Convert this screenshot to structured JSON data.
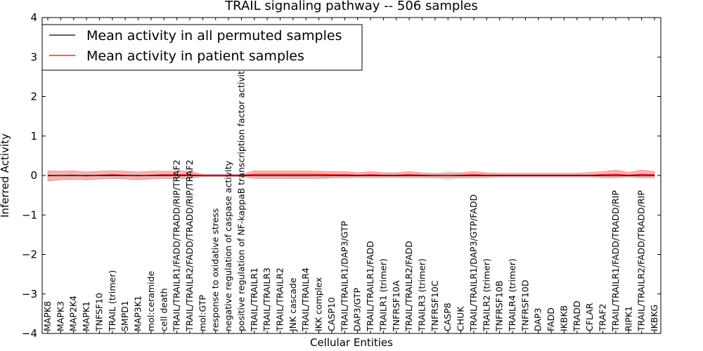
{
  "chart_data": {
    "type": "line",
    "title": "TRAIL signaling pathway -- 506 samples",
    "xlabel": "Cellular Entities",
    "ylabel": "Inferred Activity",
    "ylim": [
      -4,
      4
    ],
    "yticks": [
      "−4",
      "−3",
      "−2",
      "−1",
      "0",
      "1",
      "2",
      "3",
      "4"
    ],
    "grid": false,
    "legend_position": "top-left",
    "categories": [
      "MAPK8",
      "MAPK3",
      "MAP2K4",
      "MAPK1",
      "TNFSF10",
      "TRAIL (trimer)",
      "SMPD1",
      "MAP3K1",
      "mol:ceramide",
      "cell death",
      "TRAIL/TRAILR1/FADD/TRADD/RIP/TRAF2",
      "TRAIL/TRAILR2/FADD/TRADD/RIP/TRAF2",
      "mol:GTP",
      "response to oxidative stress",
      "negative regulation of caspase activity",
      "positive regulation of NF-kappaB transcription factor activity",
      "TRAIL/TRAILR1",
      "TRAIL/TRAILR3",
      "TRAIL/TRAILR2",
      "JNK cascade",
      "TRAIL/TRAILR4",
      "IKK complex",
      "CASP10",
      "TRAIL/TRAILR1/DAP3/GTP",
      "DAP3/GTP",
      "TRAIL/TRAILR1/FADD",
      "TRAILR1 (trimer)",
      "TNFRSF10A",
      "TRAIL/TRAILR2/FADD",
      "TRAILR3 (trimer)",
      "TNFRSF10C",
      "CASP8",
      "CHUK",
      "TRAIL/TRAILR1/DAP3/GTP/FADD",
      "TRAILR2 (trimer)",
      "TNFRSF10B",
      "TRAILR4 (trimer)",
      "TNFRSF10D",
      "DAP3",
      "FADD",
      "IKBKB",
      "TRADD",
      "CFLAR",
      "TRAF2",
      "TRAIL/TRAILR1/FADD/TRADD/RIP",
      "RIPK1",
      "TRAIL/TRAILR2/FADD/TRADD/RIP",
      "IKBKG"
    ],
    "series": [
      {
        "name": "Mean activity in all permuted samples",
        "color": "#000000",
        "values": [
          0,
          0,
          0,
          0,
          0,
          0,
          0,
          0,
          0,
          0,
          0,
          0,
          0,
          0,
          0,
          0,
          0,
          0,
          0,
          0,
          0,
          0,
          0,
          0,
          0,
          0,
          0,
          0,
          0,
          0,
          0,
          0,
          0,
          0,
          0,
          0,
          0,
          0,
          0,
          0,
          0,
          0,
          0,
          0,
          0,
          0,
          0,
          0
        ],
        "band_upper": [
          0.03,
          0.03,
          0.04,
          0.04,
          0.04,
          0.04,
          0.04,
          0.04,
          0.03,
          0.03,
          0.03,
          0.03,
          0.02,
          0.02,
          0.02,
          0.02,
          0.05,
          0.05,
          0.05,
          0.05,
          0.05,
          0.06,
          0.06,
          0.06,
          0.05,
          0.05,
          0.05,
          0.05,
          0.05,
          0.05,
          0.06,
          0.12,
          0.08,
          0.06,
          0.05,
          0.05,
          0.04,
          0.04,
          0.04,
          0.04,
          0.04,
          0.04,
          0.04,
          0.04,
          0.06,
          0.04,
          0.06,
          0.04
        ],
        "band_lower": [
          -0.03,
          -0.03,
          -0.04,
          -0.04,
          -0.04,
          -0.04,
          -0.04,
          -0.04,
          -0.03,
          -0.03,
          -0.03,
          -0.03,
          -0.02,
          -0.02,
          -0.02,
          -0.02,
          -0.05,
          -0.06,
          -0.07,
          -0.08,
          -0.08,
          -0.1,
          -0.08,
          -0.06,
          -0.05,
          -0.05,
          -0.05,
          -0.05,
          -0.05,
          -0.06,
          -0.08,
          -0.12,
          -0.08,
          -0.06,
          -0.05,
          -0.05,
          -0.04,
          -0.04,
          -0.04,
          -0.04,
          -0.04,
          -0.04,
          -0.04,
          -0.04,
          -0.06,
          -0.04,
          -0.06,
          -0.04
        ]
      },
      {
        "name": "Mean activity in patient samples",
        "color": "#ff0000",
        "band_color": "#f4a4a4",
        "values": [
          -0.01,
          0.0,
          0.01,
          -0.01,
          0.01,
          0.02,
          0.01,
          -0.01,
          0.01,
          0.02,
          0.02,
          0.02,
          0.0,
          0.0,
          0.0,
          0.0,
          0.03,
          0.03,
          0.03,
          0.03,
          0.03,
          0.03,
          0.02,
          0.02,
          0.01,
          0.02,
          0.01,
          0.01,
          0.02,
          0.01,
          0.0,
          0.0,
          0.01,
          0.02,
          0.01,
          0.01,
          0.01,
          0.01,
          0.01,
          0.01,
          0.01,
          0.01,
          0.01,
          0.02,
          0.03,
          0.01,
          0.03,
          0.02
        ],
        "band_upper": [
          0.12,
          0.11,
          0.12,
          0.09,
          0.11,
          0.12,
          0.11,
          0.09,
          0.11,
          0.11,
          0.11,
          0.11,
          0.03,
          0.03,
          0.03,
          0.03,
          0.12,
          0.12,
          0.12,
          0.12,
          0.12,
          0.11,
          0.1,
          0.1,
          0.07,
          0.1,
          0.07,
          0.07,
          0.1,
          0.07,
          0.05,
          0.05,
          0.07,
          0.1,
          0.07,
          0.06,
          0.06,
          0.06,
          0.06,
          0.06,
          0.06,
          0.06,
          0.08,
          0.1,
          0.14,
          0.08,
          0.14,
          0.1
        ],
        "band_lower": [
          -0.14,
          -0.11,
          -0.1,
          -0.11,
          -0.09,
          -0.08,
          -0.09,
          -0.11,
          -0.09,
          -0.08,
          -0.08,
          -0.08,
          -0.03,
          -0.03,
          -0.03,
          -0.03,
          -0.08,
          -0.08,
          -0.08,
          -0.08,
          -0.08,
          -0.07,
          -0.06,
          -0.06,
          -0.05,
          -0.06,
          -0.05,
          -0.05,
          -0.06,
          -0.05,
          -0.05,
          -0.05,
          -0.05,
          -0.06,
          -0.05,
          -0.04,
          -0.04,
          -0.04,
          -0.04,
          -0.04,
          -0.04,
          -0.04,
          -0.04,
          -0.06,
          -0.06,
          -0.04,
          -0.06,
          -0.06
        ]
      }
    ]
  }
}
